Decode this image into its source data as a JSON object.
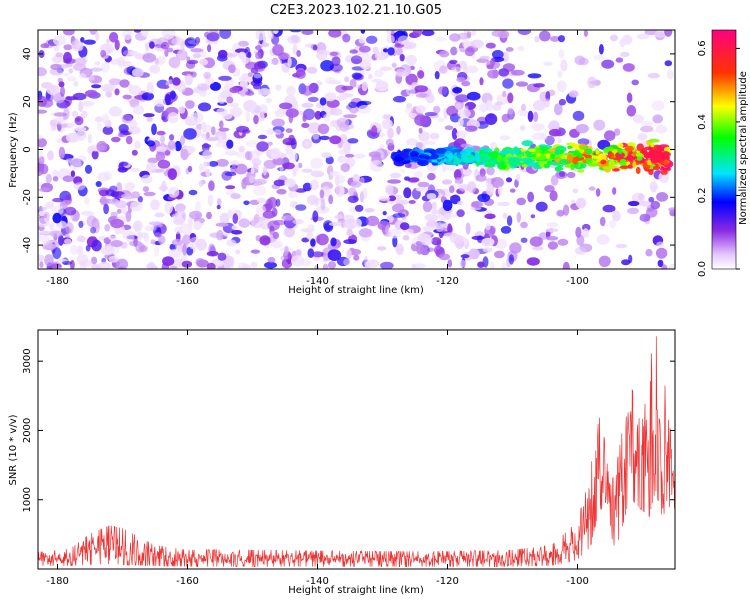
{
  "figure_title": "C2E3.2023.102.21.10.G05",
  "chart_data": [
    {
      "type": "heatmap",
      "title": "C2E3.2023.102.21.10.G05",
      "xlabel": "Height of straight line (km)",
      "ylabel": "Frequency (Hz)",
      "xlim": [
        -183,
        -85
      ],
      "ylim": [
        -50,
        50
      ],
      "x_ticks": [
        -180,
        -160,
        -140,
        -120,
        -100
      ],
      "y_ticks": [
        -40,
        -20,
        0,
        20,
        40
      ],
      "colorbar": {
        "label": "Normalized spectral amplitude",
        "range": [
          0,
          0.65
        ],
        "ticks": [
          0.0,
          0.2,
          0.4,
          0.6
        ],
        "colormap": "rainbow (white-violet-blue-cyan-green-yellow-red-magenta)"
      },
      "grid": false,
      "features": {
        "background": "scattered low-amplitude violet speckle across full frequency range",
        "signal_band": {
          "frequency_center_hz": -3,
          "x_start_km": -128,
          "x_end_km": -86,
          "peak_amplitude": 0.6,
          "peak_location_km": -88
        }
      }
    },
    {
      "type": "line",
      "xlabel": "Height of straight line (km)",
      "ylabel": "SNR (10 * v/v)",
      "xlim": [
        -183,
        -85
      ],
      "ylim": [
        0,
        3450
      ],
      "x_ticks": [
        -180,
        -160,
        -140,
        -120,
        -100
      ],
      "y_ticks": [
        1000,
        2000,
        3000
      ],
      "grid": false,
      "series": [
        {
          "color": "#ee3333",
          "envelope": {
            "x": [
              -183,
              -178,
              -175,
              -172,
              -170,
              -165,
              -160,
              -150,
              -140,
              -130,
              -120,
              -110,
              -104,
              -100,
              -98,
              -97,
              -96,
              -95,
              -94,
              -93,
              -92,
              -91,
              -90,
              -89,
              -88,
              -87,
              -86,
              -85
            ],
            "y_low": [
              40,
              40,
              50,
              60,
              50,
              40,
              30,
              30,
              30,
              30,
              30,
              30,
              40,
              120,
              300,
              700,
              500,
              350,
              300,
              600,
              1000,
              900,
              800,
              700,
              1100,
              700,
              600,
              500
            ],
            "y_high": [
              250,
              300,
              520,
              640,
              600,
              350,
              280,
              280,
              270,
              260,
              260,
              280,
              350,
              700,
              1400,
              2350,
              2000,
              1200,
              1500,
              2100,
              2700,
              2500,
              2900,
              3000,
              3450,
              3100,
              2200,
              1600
            ]
          }
        }
      ]
    }
  ]
}
